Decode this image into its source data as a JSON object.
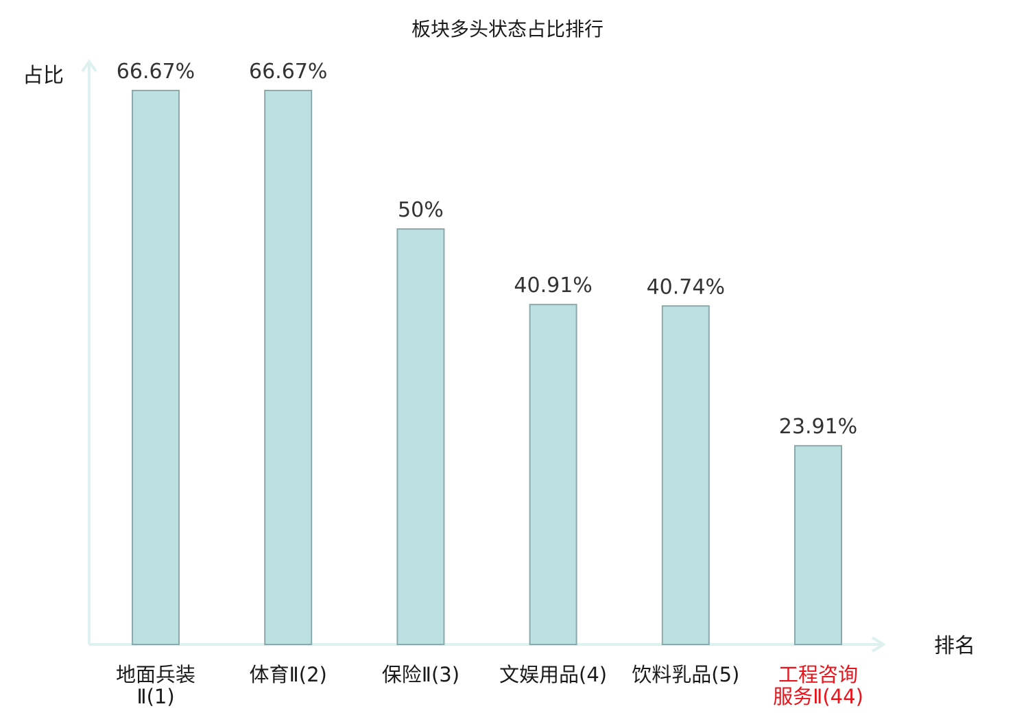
{
  "chart_data": {
    "type": "bar",
    "title": "板块多头状态占比排行",
    "ylabel": "占比",
    "xlabel": "排名",
    "ylim": [
      0,
      100
    ],
    "categories": [
      {
        "lines": [
          "地面兵装",
          "Ⅱ(1)"
        ],
        "highlight": false
      },
      {
        "lines": [
          "体育Ⅱ(2)"
        ],
        "highlight": false
      },
      {
        "lines": [
          "保险Ⅱ(3)"
        ],
        "highlight": false
      },
      {
        "lines": [
          "文娱用品(4)"
        ],
        "highlight": false
      },
      {
        "lines": [
          "饮料乳品(5)"
        ],
        "highlight": false
      },
      {
        "lines": [
          "工程咨询",
          "服务Ⅱ(44)"
        ],
        "highlight": true
      }
    ],
    "values": [
      66.67,
      66.67,
      50,
      40.91,
      40.74,
      23.91
    ],
    "value_labels": [
      "66.67%",
      "66.67%",
      "50%",
      "40.91%",
      "40.74%",
      "23.91%"
    ],
    "grid": false,
    "legend": "none"
  },
  "colors": {
    "bar_fill": "#bde0e3",
    "bar_stroke": "#8aa9ab",
    "axis": "#ddf1ee",
    "text": "#1a1a1a",
    "highlight_text": "#e8141b"
  }
}
